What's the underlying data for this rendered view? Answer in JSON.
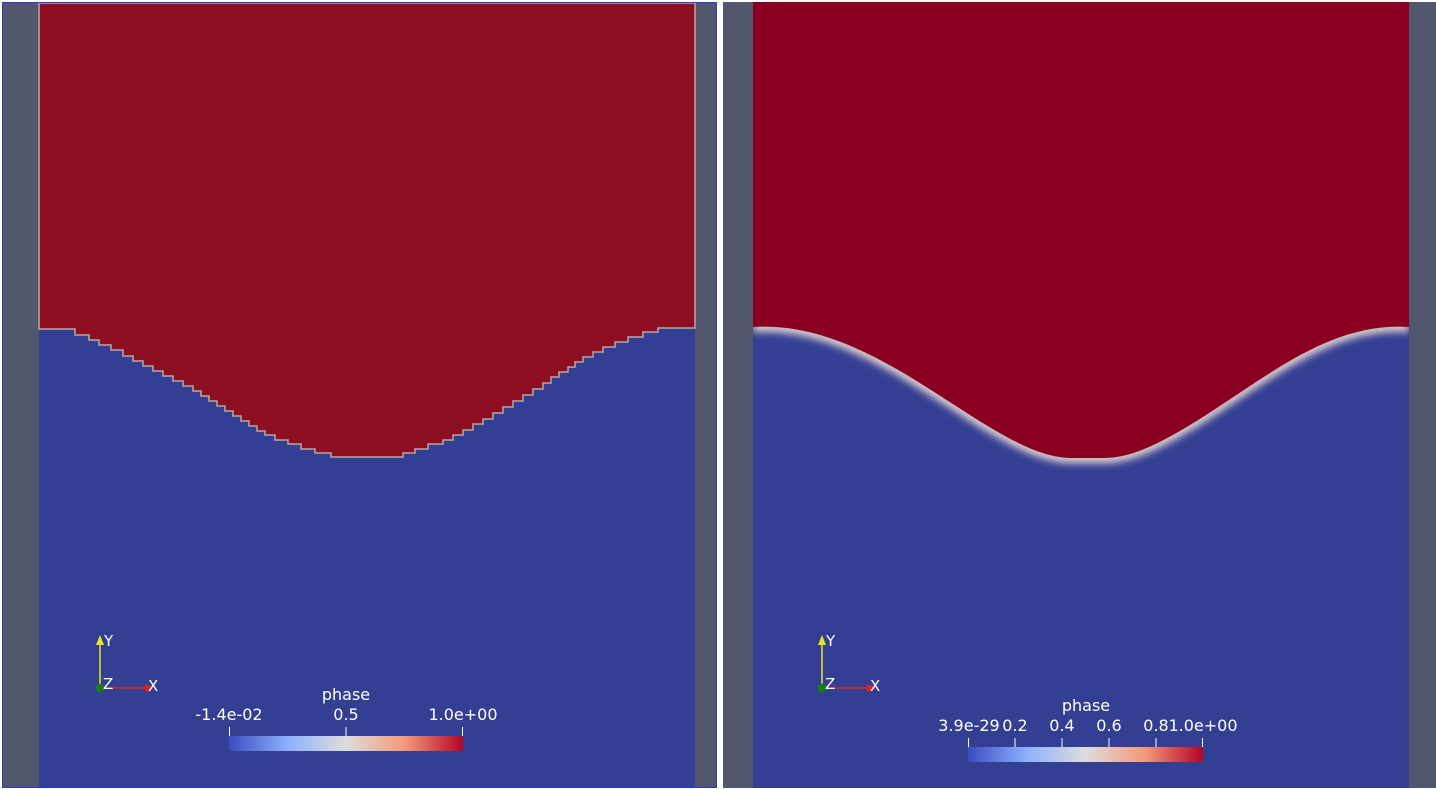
{
  "views": [
    {
      "id": "left",
      "active": true,
      "colorbar": {
        "title": "phase",
        "labels": [
          "-1.4e-02",
          "0.5",
          "1.0e+00"
        ],
        "range": [
          -0.014,
          1.0
        ]
      },
      "axes": {
        "x": "X",
        "y": "Y",
        "z": "Z"
      }
    },
    {
      "id": "right",
      "active": false,
      "colorbar": {
        "title": "phase",
        "labels": [
          "3.9e-29",
          "0.2",
          "0.4",
          "0.6",
          "0.8",
          "1.0e+00"
        ],
        "range": [
          0.0,
          1.0
        ]
      },
      "axes": {
        "x": "X",
        "y": "Y",
        "z": "Z"
      }
    }
  ],
  "colors": {
    "background": "#52576e",
    "phase_high_left": "#8d0f21",
    "phase_high_right": "#8a0020",
    "phase_low": "#333f93",
    "active_border": "#2b3bd1",
    "axis_x": "#e0201c",
    "axis_y": "#e8e81c",
    "axis_z": "#1a7a1a"
  }
}
